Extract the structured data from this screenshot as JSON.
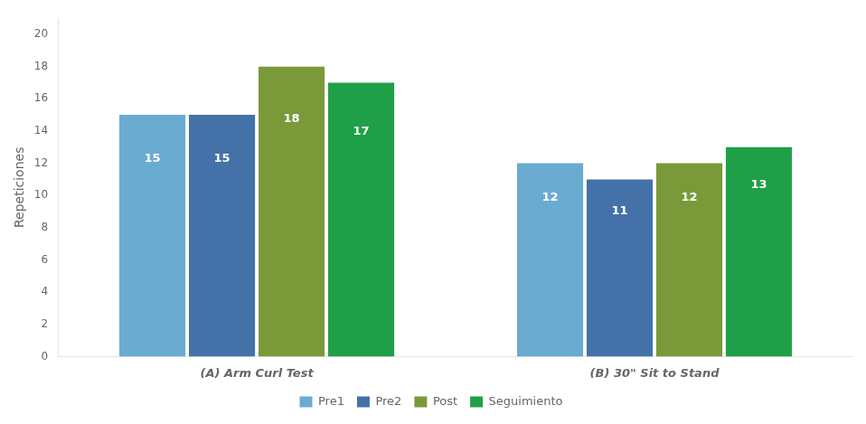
{
  "chart_data": {
    "type": "bar",
    "categories": [
      "(A) Arm Curl Test",
      "(B) 30\" Sit to Stand"
    ],
    "series": [
      {
        "name": "Pre1",
        "color": "#6aabd2",
        "values": [
          15,
          12
        ]
      },
      {
        "name": "Pre2",
        "color": "#4472a8",
        "values": [
          15,
          11
        ]
      },
      {
        "name": "Post",
        "color": "#7a9a3a",
        "values": [
          18,
          12
        ]
      },
      {
        "name": "Seguimiento",
        "color": "#1fa048",
        "values": [
          17,
          13
        ]
      }
    ],
    "ylabel": "Repeticiones",
    "ylim": [
      0,
      21
    ],
    "yticks": [
      0,
      2,
      4,
      6,
      8,
      10,
      12,
      14,
      16,
      18,
      20
    ],
    "grid": false,
    "legend": "bottom",
    "data_labels": true
  }
}
